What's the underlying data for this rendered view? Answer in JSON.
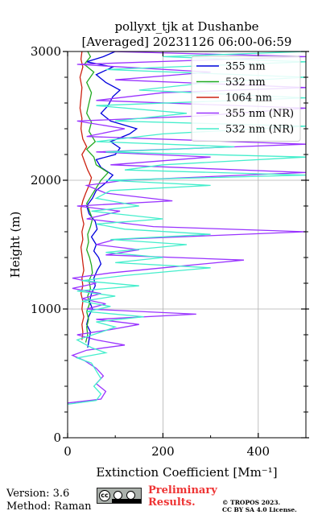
{
  "chart_data": {
    "type": "line",
    "title": "pollyxt_tjk at Dushanbe",
    "subtitle": "[Averaged] 20231126 06:00-06:59",
    "xlabel": "Extinction Coefficient [Mm⁻¹]",
    "ylabel": "Height (m)",
    "xlim": [
      0,
      500
    ],
    "ylim": [
      0,
      3000
    ],
    "xticks": [
      0,
      200,
      400
    ],
    "yticks": [
      0,
      1000,
      2000,
      3000
    ],
    "grid": true,
    "legend_position": "top-right",
    "series": [
      {
        "name": "355 nm",
        "color": "#0000dd",
        "points": [
          [
            42,
            700
          ],
          [
            45,
            760
          ],
          [
            48,
            820
          ],
          [
            40,
            880
          ],
          [
            44,
            940
          ],
          [
            52,
            1000
          ],
          [
            46,
            1060
          ],
          [
            50,
            1120
          ],
          [
            58,
            1180
          ],
          [
            55,
            1240
          ],
          [
            62,
            1300
          ],
          [
            70,
            1350
          ],
          [
            65,
            1400
          ],
          [
            55,
            1450
          ],
          [
            60,
            1500
          ],
          [
            50,
            1560
          ],
          [
            62,
            1620
          ],
          [
            58,
            1680
          ],
          [
            45,
            1740
          ],
          [
            40,
            1800
          ],
          [
            52,
            1860
          ],
          [
            60,
            1920
          ],
          [
            80,
            1980
          ],
          [
            95,
            2040
          ],
          [
            70,
            2100
          ],
          [
            60,
            2160
          ],
          [
            100,
            2200
          ],
          [
            110,
            2250
          ],
          [
            90,
            2300
          ],
          [
            130,
            2360
          ],
          [
            145,
            2400
          ],
          [
            90,
            2460
          ],
          [
            70,
            2520
          ],
          [
            85,
            2580
          ],
          [
            95,
            2650
          ],
          [
            110,
            2700
          ],
          [
            80,
            2760
          ],
          [
            60,
            2820
          ],
          [
            95,
            2880
          ],
          [
            40,
            2920
          ],
          [
            75,
            2960
          ],
          [
            100,
            3000
          ]
        ]
      },
      {
        "name": "532 nm",
        "color": "#22aa22",
        "points": [
          [
            38,
            740
          ],
          [
            42,
            800
          ],
          [
            40,
            860
          ],
          [
            44,
            920
          ],
          [
            40,
            980
          ],
          [
            46,
            1040
          ],
          [
            42,
            1100
          ],
          [
            48,
            1160
          ],
          [
            45,
            1220
          ],
          [
            52,
            1280
          ],
          [
            50,
            1340
          ],
          [
            46,
            1400
          ],
          [
            40,
            1460
          ],
          [
            44,
            1520
          ],
          [
            42,
            1580
          ],
          [
            48,
            1640
          ],
          [
            52,
            1700
          ],
          [
            46,
            1760
          ],
          [
            40,
            1820
          ],
          [
            50,
            1880
          ],
          [
            60,
            1940
          ],
          [
            70,
            2000
          ],
          [
            85,
            2060
          ],
          [
            60,
            2120
          ],
          [
            55,
            2180
          ],
          [
            40,
            2240
          ],
          [
            58,
            2300
          ],
          [
            45,
            2380
          ],
          [
            50,
            2450
          ],
          [
            40,
            2520
          ],
          [
            45,
            2600
          ],
          [
            50,
            2680
          ],
          [
            40,
            2760
          ],
          [
            55,
            2840
          ],
          [
            35,
            2900
          ],
          [
            48,
            2960
          ],
          [
            42,
            3000
          ]
        ]
      },
      {
        "name": "1064 nm",
        "color": "#cc2211",
        "points": [
          [
            30,
            760
          ],
          [
            32,
            820
          ],
          [
            30,
            880
          ],
          [
            34,
            940
          ],
          [
            30,
            1000
          ],
          [
            32,
            1060
          ],
          [
            28,
            1120
          ],
          [
            32,
            1180
          ],
          [
            30,
            1240
          ],
          [
            34,
            1300
          ],
          [
            32,
            1360
          ],
          [
            30,
            1420
          ],
          [
            28,
            1480
          ],
          [
            32,
            1540
          ],
          [
            30,
            1600
          ],
          [
            34,
            1660
          ],
          [
            30,
            1720
          ],
          [
            28,
            1780
          ],
          [
            32,
            1840
          ],
          [
            38,
            1900
          ],
          [
            45,
            1960
          ],
          [
            50,
            2020
          ],
          [
            42,
            2080
          ],
          [
            36,
            2140
          ],
          [
            30,
            2200
          ],
          [
            40,
            2260
          ],
          [
            32,
            2320
          ],
          [
            28,
            2400
          ],
          [
            30,
            2480
          ],
          [
            26,
            2560
          ],
          [
            28,
            2640
          ],
          [
            30,
            2720
          ],
          [
            26,
            2800
          ],
          [
            32,
            2880
          ],
          [
            28,
            2940
          ],
          [
            30,
            3000
          ]
        ]
      },
      {
        "name": "355 nm (NR)",
        "color": "#9933ff",
        "points": [
          [
            0,
            270
          ],
          [
            70,
            300
          ],
          [
            80,
            360
          ],
          [
            60,
            420
          ],
          [
            75,
            480
          ],
          [
            60,
            540
          ],
          [
            35,
            600
          ],
          [
            10,
            640
          ],
          [
            40,
            680
          ],
          [
            120,
            720
          ],
          [
            60,
            760
          ],
          [
            20,
            800
          ],
          [
            90,
            840
          ],
          [
            150,
            880
          ],
          [
            60,
            920
          ],
          [
            270,
            960
          ],
          [
            40,
            1000
          ],
          [
            80,
            1040
          ],
          [
            30,
            1080
          ],
          [
            70,
            1120
          ],
          [
            10,
            1160
          ],
          [
            60,
            1200
          ],
          [
            10,
            1240
          ],
          [
            90,
            1280
          ],
          [
            200,
            1320
          ],
          [
            370,
            1380
          ],
          [
            80,
            1420
          ],
          [
            150,
            1460
          ],
          [
            60,
            1500
          ],
          [
            100,
            1540
          ],
          [
            500,
            1600
          ],
          [
            180,
            1640
          ],
          [
            40,
            1700
          ],
          [
            110,
            1760
          ],
          [
            20,
            1800
          ],
          [
            220,
            1840
          ],
          [
            80,
            1900
          ],
          [
            40,
            1960
          ],
          [
            120,
            2000
          ],
          [
            500,
            2060
          ],
          [
            90,
            2120
          ],
          [
            300,
            2180
          ],
          [
            60,
            2220
          ],
          [
            500,
            2280
          ],
          [
            40,
            2340
          ],
          [
            120,
            2400
          ],
          [
            20,
            2460
          ],
          [
            280,
            2500
          ],
          [
            500,
            2560
          ],
          [
            60,
            2620
          ],
          [
            200,
            2680
          ],
          [
            500,
            2720
          ],
          [
            100,
            2780
          ],
          [
            300,
            2840
          ],
          [
            20,
            2900
          ],
          [
            500,
            2960
          ],
          [
            90,
            3000
          ]
        ]
      },
      {
        "name": "532 nm (NR)",
        "color": "#44eecc",
        "points": [
          [
            0,
            260
          ],
          [
            60,
            290
          ],
          [
            70,
            340
          ],
          [
            55,
            400
          ],
          [
            70,
            460
          ],
          [
            60,
            520
          ],
          [
            50,
            580
          ],
          [
            20,
            620
          ],
          [
            80,
            660
          ],
          [
            50,
            700
          ],
          [
            20,
            760
          ],
          [
            70,
            820
          ],
          [
            100,
            860
          ],
          [
            60,
            900
          ],
          [
            160,
            940
          ],
          [
            40,
            980
          ],
          [
            90,
            1020
          ],
          [
            30,
            1060
          ],
          [
            100,
            1100
          ],
          [
            20,
            1140
          ],
          [
            150,
            1180
          ],
          [
            30,
            1220
          ],
          [
            120,
            1260
          ],
          [
            300,
            1320
          ],
          [
            100,
            1360
          ],
          [
            200,
            1400
          ],
          [
            80,
            1440
          ],
          [
            250,
            1500
          ],
          [
            90,
            1540
          ],
          [
            300,
            1580
          ],
          [
            120,
            1620
          ],
          [
            60,
            1660
          ],
          [
            200,
            1700
          ],
          [
            50,
            1760
          ],
          [
            150,
            1800
          ],
          [
            60,
            1860
          ],
          [
            90,
            1920
          ],
          [
            300,
            1960
          ],
          [
            80,
            2000
          ],
          [
            500,
            2040
          ],
          [
            120,
            2080
          ],
          [
            200,
            2120
          ],
          [
            500,
            2180
          ],
          [
            80,
            2220
          ],
          [
            350,
            2260
          ],
          [
            60,
            2300
          ],
          [
            200,
            2360
          ],
          [
            500,
            2420
          ],
          [
            100,
            2460
          ],
          [
            250,
            2520
          ],
          [
            60,
            2580
          ],
          [
            500,
            2640
          ],
          [
            150,
            2700
          ],
          [
            300,
            2760
          ],
          [
            500,
            2800
          ],
          [
            80,
            2860
          ],
          [
            500,
            2920
          ],
          [
            200,
            2960
          ],
          [
            500,
            3000
          ]
        ]
      }
    ]
  },
  "footer": {
    "version": "Version: 3.6",
    "method": "Method: Raman",
    "cc_badge": "cc-by-sa-badge",
    "cc_badge_text": "BY SA",
    "preliminary_line1": "Preliminary",
    "preliminary_line2": "Results.",
    "copyright_line1": "© TROPOS 2023.",
    "copyright_line2": "CC BY SA 4.0 License."
  }
}
